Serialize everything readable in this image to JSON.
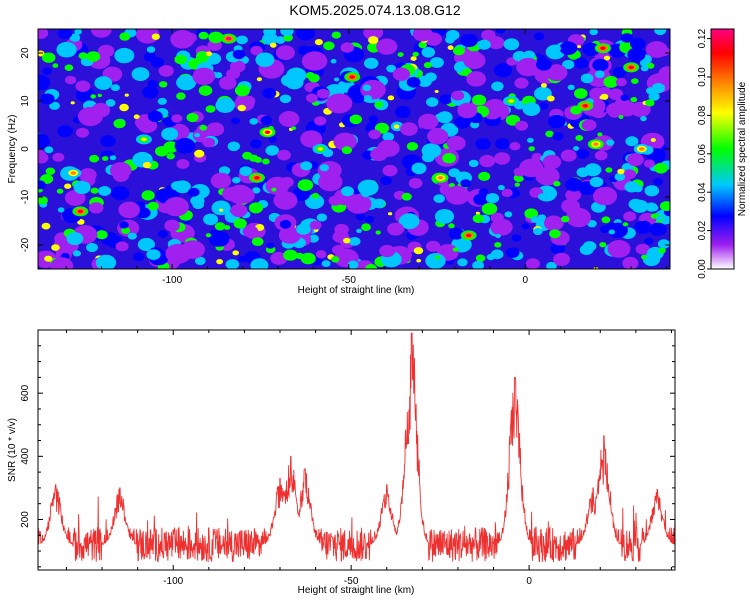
{
  "title": "KOM5.2025.074.13.08.G12",
  "chart_data": [
    {
      "type": "heatmap",
      "xlabel": "Height of straight line (km)",
      "ylabel": "Frequency (Hz)",
      "xlim": [
        -138,
        41
      ],
      "ylim": [
        -25,
        25
      ],
      "x_ticks": [
        "-100",
        "-50",
        "0"
      ],
      "x_tick_values": [
        -100,
        -50,
        0
      ],
      "y_ticks": [
        "-20",
        "-10",
        "0",
        "10",
        "20"
      ],
      "y_tick_values": [
        -20,
        -10,
        0,
        10,
        20
      ],
      "colorbar": {
        "label": "Normalized spectral amplitude",
        "range": [
          0,
          0.125
        ],
        "ticks": [
          "0.00",
          "0.02",
          "0.04",
          "0.06",
          "0.08",
          "0.10",
          "0.12"
        ],
        "tick_values": [
          0,
          0.02,
          0.04,
          0.06,
          0.08,
          0.1,
          0.12
        ],
        "colors": [
          "#ffffff",
          "#a020f0",
          "#0000ff",
          "#00c8ff",
          "#00ff00",
          "#ffff00",
          "#ff8000",
          "#ff0000",
          "#ff0080"
        ]
      },
      "hotspots": [
        {
          "x": -84,
          "y": 23,
          "v": 0.12
        },
        {
          "x": -49,
          "y": 15,
          "v": 0.11
        },
        {
          "x": -73,
          "y": 3.5,
          "v": 0.105
        },
        {
          "x": -76,
          "y": -6,
          "v": 0.11
        },
        {
          "x": -126,
          "y": -13,
          "v": 0.11
        },
        {
          "x": -16,
          "y": -18,
          "v": 0.11
        },
        {
          "x": -24,
          "y": -6,
          "v": 0.1
        },
        {
          "x": 17,
          "y": 9,
          "v": 0.11
        },
        {
          "x": 22,
          "y": 21,
          "v": 0.11
        },
        {
          "x": 30,
          "y": 17,
          "v": 0.115
        },
        {
          "x": 20,
          "y": 1,
          "v": 0.1
        },
        {
          "x": 33,
          "y": 0,
          "v": 0.09
        },
        {
          "x": -128,
          "y": -5,
          "v": 0.09
        },
        {
          "x": -108,
          "y": 2,
          "v": 0.08
        },
        {
          "x": -58,
          "y": 0,
          "v": 0.085
        },
        {
          "x": -4,
          "y": 10,
          "v": 0.08
        }
      ]
    },
    {
      "type": "line",
      "xlabel": "Height of straight line (km)",
      "ylabel": "SNR (10 * v/v)",
      "xlim": [
        -138,
        41
      ],
      "ylim": [
        40,
        800
      ],
      "x_ticks": [
        "-100",
        "-50",
        "0"
      ],
      "x_tick_values": [
        -100,
        -50,
        0
      ],
      "y_ticks": [
        "200",
        "400",
        "600"
      ],
      "y_tick_values": [
        200,
        400,
        600
      ],
      "color": "#ee3030",
      "baseline": 120,
      "noise": 55,
      "peaks": [
        {
          "x": -33,
          "y": 790
        },
        {
          "x": -34,
          "y": 440
        },
        {
          "x": -4,
          "y": 650
        },
        {
          "x": 21,
          "y": 465
        },
        {
          "x": -67,
          "y": 400
        },
        {
          "x": -63,
          "y": 360
        },
        {
          "x": -70,
          "y": 330
        },
        {
          "x": -133,
          "y": 310
        },
        {
          "x": -115,
          "y": 300
        },
        {
          "x": -40,
          "y": 310
        },
        {
          "x": 18,
          "y": 300
        },
        {
          "x": 36,
          "y": 295
        }
      ]
    }
  ]
}
